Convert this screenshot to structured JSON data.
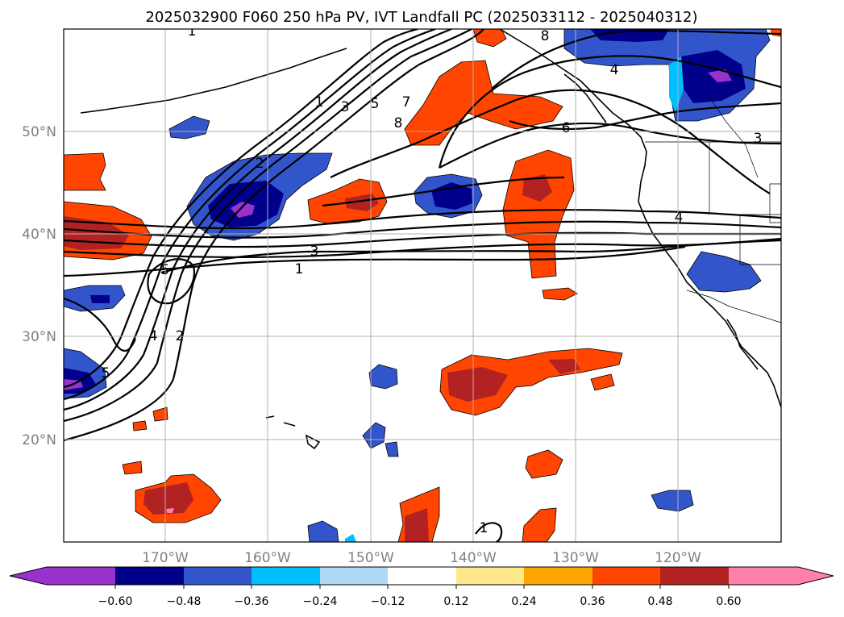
{
  "title": "2025032900 F060 250 hPa PV, IVT Landfall PC (2025033112 - 2025040312)",
  "map": {
    "lat_labels": [
      "50°N",
      "40°N",
      "30°N",
      "20°N"
    ],
    "lon_labels": [
      "170°W",
      "160°W",
      "150°W",
      "140°W",
      "130°W",
      "120°W"
    ],
    "gridlines": true,
    "contour_labels": [
      "1",
      "2",
      "3",
      "5",
      "7",
      "8",
      "6",
      "4",
      "3",
      "1",
      "3",
      "5",
      "4",
      "2",
      "5",
      "4",
      "1",
      "1"
    ]
  },
  "colorbar": {
    "ticks": [
      "−0.60",
      "−0.48",
      "−0.36",
      "−0.24",
      "−0.12",
      "0.12",
      "0.24",
      "0.36",
      "0.48",
      "0.60"
    ],
    "colors": [
      "#9932cc",
      "#00008b",
      "#3355cc",
      "#00bfff",
      "#add8f6",
      "#ffffff",
      "#ffe88a",
      "#ffa500",
      "#ff4500",
      "#b22222",
      "#ff80aa"
    ]
  }
}
